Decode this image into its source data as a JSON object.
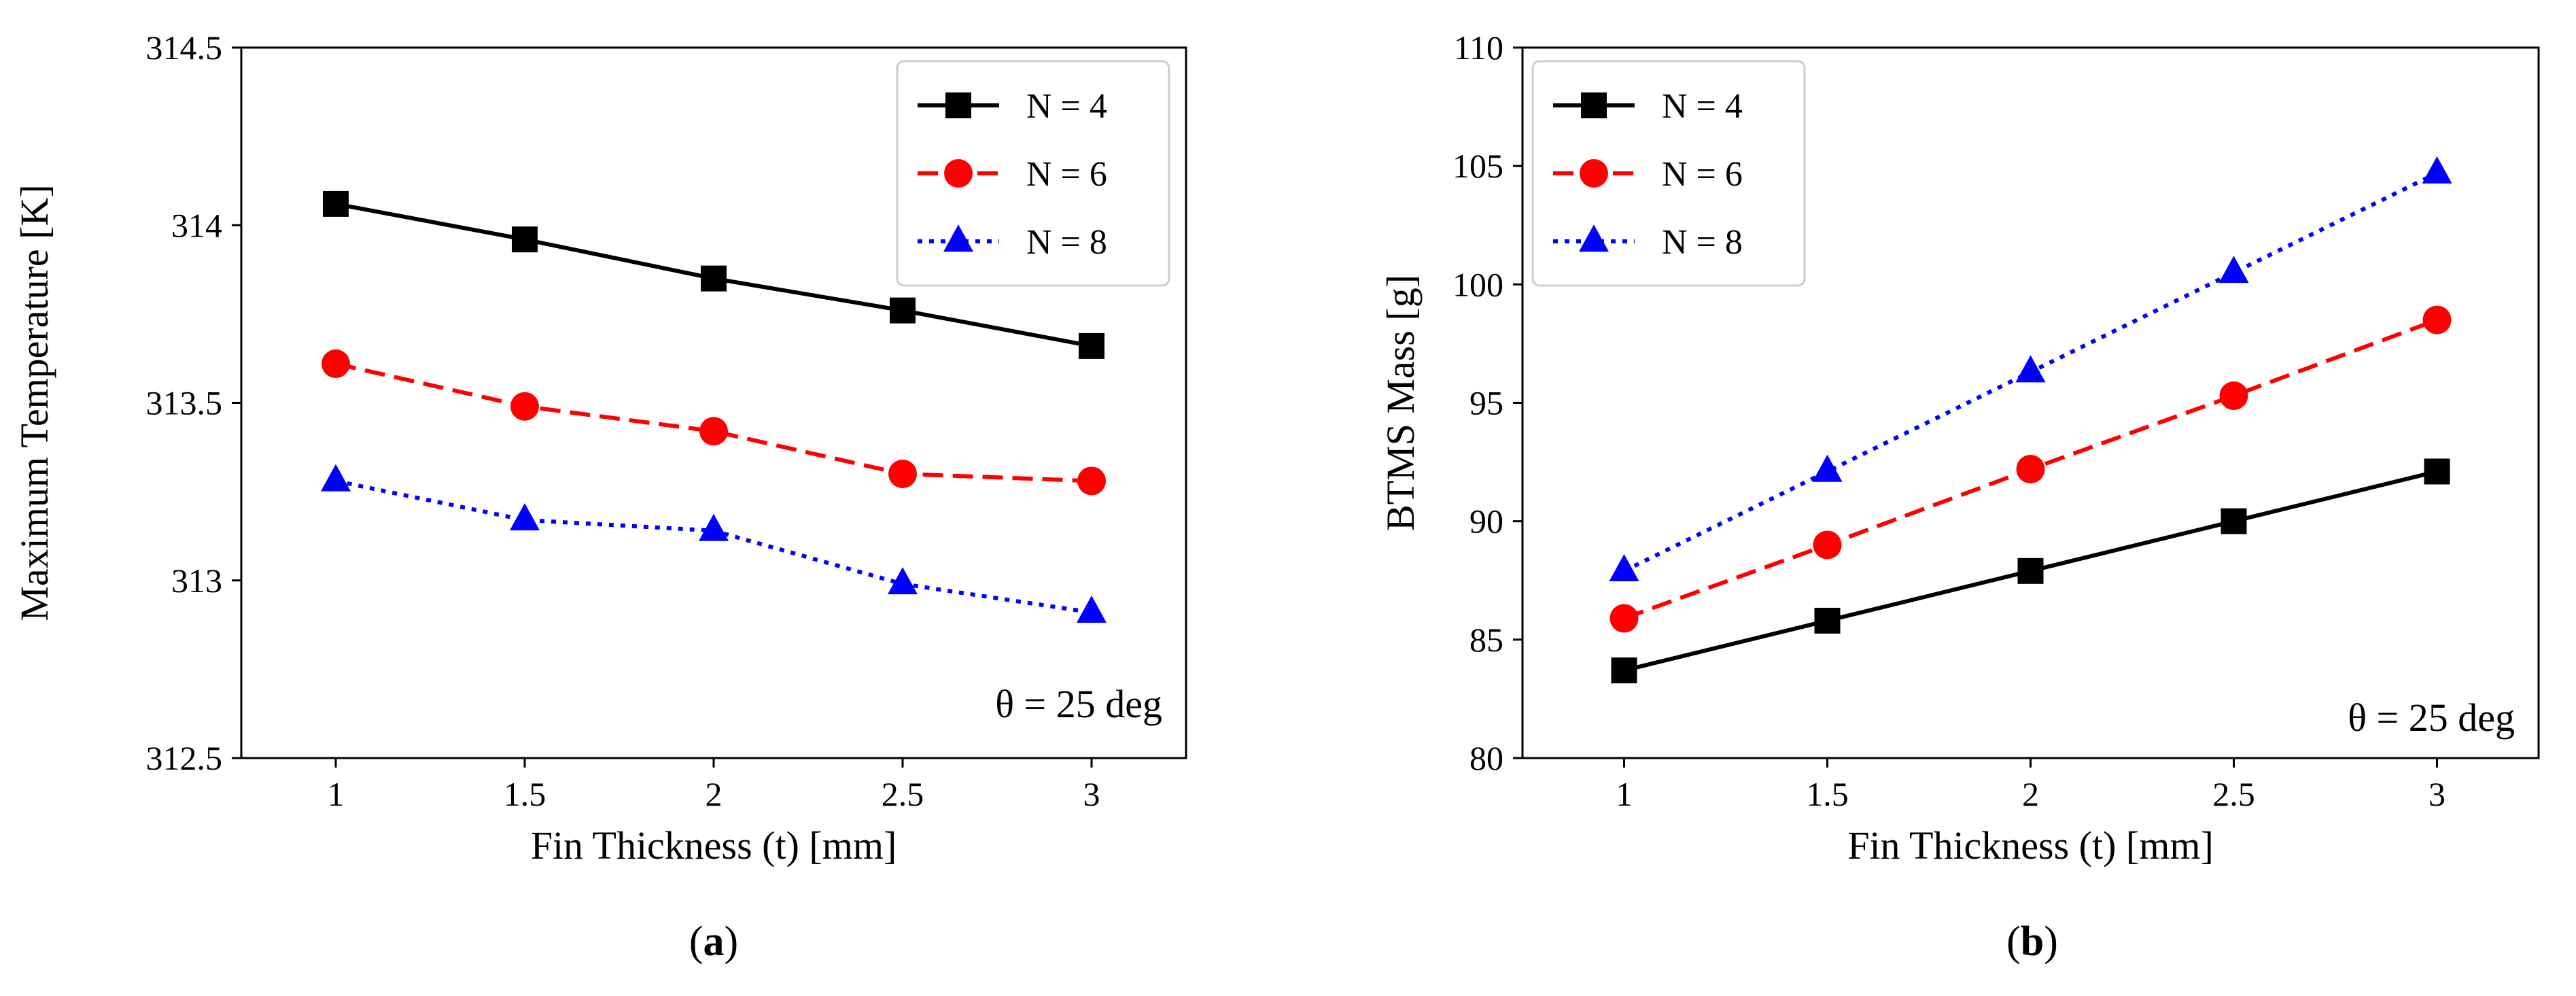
{
  "chart_data": [
    {
      "type": "line",
      "panel": "a",
      "caption": {
        "open": "(",
        "letter": "a",
        "close": ")"
      },
      "xlabel": "Fin Thickness (t) [mm]",
      "ylabel": "Maximum Temperature [K]",
      "xlim": [
        0.75,
        3.25
      ],
      "ylim": [
        312.5,
        314.5
      ],
      "x": [
        1,
        1.5,
        2,
        2.5,
        3
      ],
      "x_tick_labels": [
        "1",
        "1.5",
        "2",
        "2.5",
        "3"
      ],
      "y_ticks": [
        312.5,
        313,
        313.5,
        314,
        314.5
      ],
      "y_tick_labels": [
        "312.5",
        "313",
        "313.5",
        "314",
        "314.5"
      ],
      "annotation": "θ = 25 deg",
      "legend_position": "top-right",
      "series": [
        {
          "name": "N = 4",
          "color": "#000000",
          "marker": "square",
          "dash": "solid",
          "values": [
            314.06,
            313.96,
            313.85,
            313.76,
            313.66
          ]
        },
        {
          "name": "N = 6",
          "color": "#ff0000",
          "marker": "circle",
          "dash": "dashed",
          "values": [
            313.61,
            313.49,
            313.42,
            313.3,
            313.28
          ]
        },
        {
          "name": "N = 8",
          "color": "#0000ff",
          "marker": "triangle",
          "dash": "dotted",
          "values": [
            313.28,
            313.17,
            313.14,
            312.99,
            312.91
          ]
        }
      ]
    },
    {
      "type": "line",
      "panel": "b",
      "caption": {
        "open": "(",
        "letter": "b",
        "close": ")"
      },
      "xlabel": "Fin Thickness (t) [mm]",
      "ylabel": "BTMS Mass [g]",
      "xlim": [
        0.75,
        3.25
      ],
      "ylim": [
        80,
        110
      ],
      "x": [
        1,
        1.5,
        2,
        2.5,
        3
      ],
      "x_tick_labels": [
        "1",
        "1.5",
        "2",
        "2.5",
        "3"
      ],
      "y_ticks": [
        80,
        85,
        90,
        95,
        100,
        105,
        110
      ],
      "y_tick_labels": [
        "80",
        "85",
        "90",
        "95",
        "100",
        "105",
        "110"
      ],
      "annotation": "θ = 25 deg",
      "legend_position": "top-left",
      "series": [
        {
          "name": "N = 4",
          "color": "#000000",
          "marker": "square",
          "dash": "solid",
          "values": [
            83.7,
            85.8,
            87.9,
            90.0,
            92.1
          ]
        },
        {
          "name": "N = 6",
          "color": "#ff0000",
          "marker": "circle",
          "dash": "dashed",
          "values": [
            85.9,
            89.0,
            92.2,
            95.3,
            98.5
          ]
        },
        {
          "name": "N = 8",
          "color": "#0000ff",
          "marker": "triangle",
          "dash": "dotted",
          "values": [
            87.9,
            92.1,
            96.3,
            100.5,
            104.7
          ]
        }
      ]
    }
  ]
}
